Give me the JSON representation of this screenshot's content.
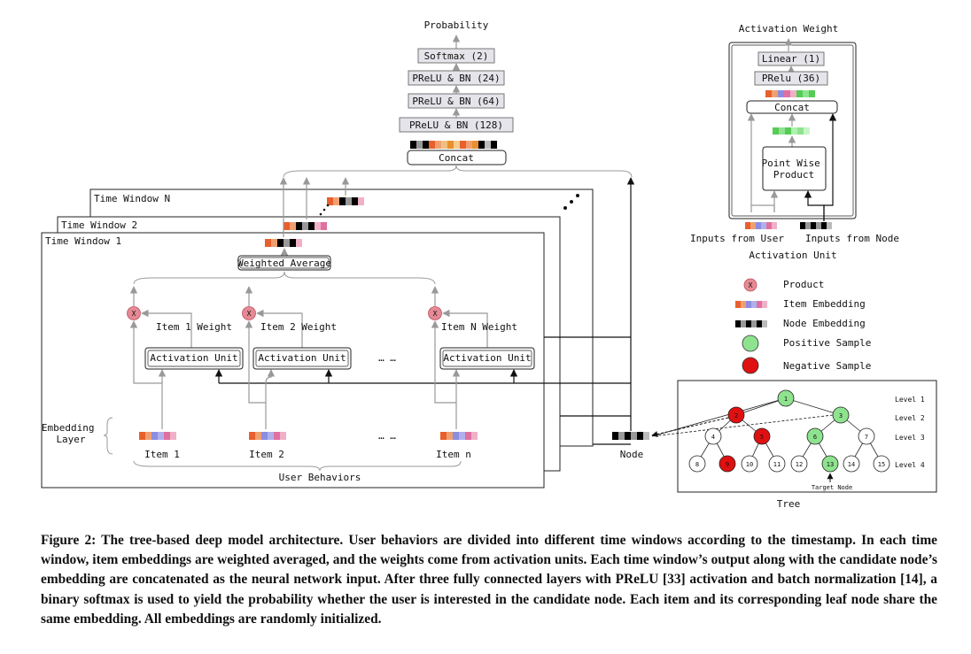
{
  "figure": {
    "main_model": {
      "output_label": "Probability",
      "layers": [
        "Softmax (2)",
        "PReLU & BN (24)",
        "PReLU & BN (64)",
        "PReLU & BN (128)"
      ],
      "concat_label": "Concat"
    },
    "time_windows": [
      "Time Window N",
      "Time Window 2",
      "Time Window 1"
    ],
    "weighted_average_label": "Weighted Average",
    "items": [
      {
        "weight_label": "Item 1 Weight",
        "unit_label": "Activation Unit",
        "item_label": "Item 1"
      },
      {
        "weight_label": "Item 2 Weight",
        "unit_label": "Activation Unit",
        "item_label": "Item 2"
      },
      {
        "weight_label": "Item N Weight",
        "unit_label": "Activation Unit",
        "item_label": "Item n"
      }
    ],
    "ellipsis": "…   …",
    "embedding_layer_label": [
      "Embedding",
      "Layer"
    ],
    "user_behaviors_label": "User Behaviors",
    "node_label": "Node",
    "activation_unit": {
      "output_label": "Activation Weight",
      "layers": [
        "Linear (1)",
        "PRelu (36)"
      ],
      "concat_label": "Concat",
      "product_label": [
        "Point Wise",
        "Product"
      ],
      "input_user_label": "Inputs from User",
      "input_node_label": "Inputs from Node",
      "caption": "Activation Unit"
    },
    "legend": [
      {
        "symbol": "product",
        "label": "Product"
      },
      {
        "symbol": "item-embedding",
        "label": "Item Embedding"
      },
      {
        "symbol": "node-embedding",
        "label": "Node Embedding"
      },
      {
        "symbol": "positive-sample",
        "label": "Positive Sample"
      },
      {
        "symbol": "negative-sample",
        "label": "Negative Sample"
      }
    ],
    "product_symbol": "X",
    "tree": {
      "levels": [
        "Level 1",
        "Level 2",
        "Level 3",
        "Level 4"
      ],
      "nodes": [
        {
          "id": "1",
          "color": "positive"
        },
        {
          "id": "2",
          "color": "negative"
        },
        {
          "id": "3",
          "color": "positive"
        },
        {
          "id": "4",
          "color": "neutral"
        },
        {
          "id": "5",
          "color": "negative"
        },
        {
          "id": "6",
          "color": "positive"
        },
        {
          "id": "7",
          "color": "neutral"
        },
        {
          "id": "8",
          "color": "neutral"
        },
        {
          "id": "9",
          "color": "negative"
        },
        {
          "id": "10",
          "color": "neutral"
        },
        {
          "id": "11",
          "color": "neutral"
        },
        {
          "id": "12",
          "color": "neutral"
        },
        {
          "id": "13",
          "color": "positive"
        },
        {
          "id": "14",
          "color": "neutral"
        },
        {
          "id": "15",
          "color": "neutral"
        }
      ],
      "target_label": "Target Node",
      "caption": "Tree"
    },
    "colors": {
      "positive": "#8ee38e",
      "negative": "#e01010",
      "neutral": "#ffffff",
      "product": "#e58a94",
      "layer_box": "#e4e4ea",
      "item_embedding": [
        "#e8602c",
        "#f0a070",
        "#8c8ce0",
        "#b0b0ee",
        "#e070a0",
        "#f0b0c8"
      ],
      "node_embedding": [
        "#000000",
        "#999999",
        "#000000",
        "#999999",
        "#000000",
        "#bbbbbb"
      ]
    }
  },
  "caption": "Figure 2: The tree-based deep model architecture. User behaviors are divided into different time windows according to the timestamp. In each time window, item embeddings are weighted averaged, and the weights come from activation units. Each time window’s output along with the candidate node’s embedding are concatenated as the neural network input. After three fully connected layers with PReLU [33] activation and batch normalization [14], a binary softmax is used to yield the probability whether the user is interested in the candidate node. Each item and its corresponding leaf node share the same embedding. All embeddings are randomly initialized."
}
